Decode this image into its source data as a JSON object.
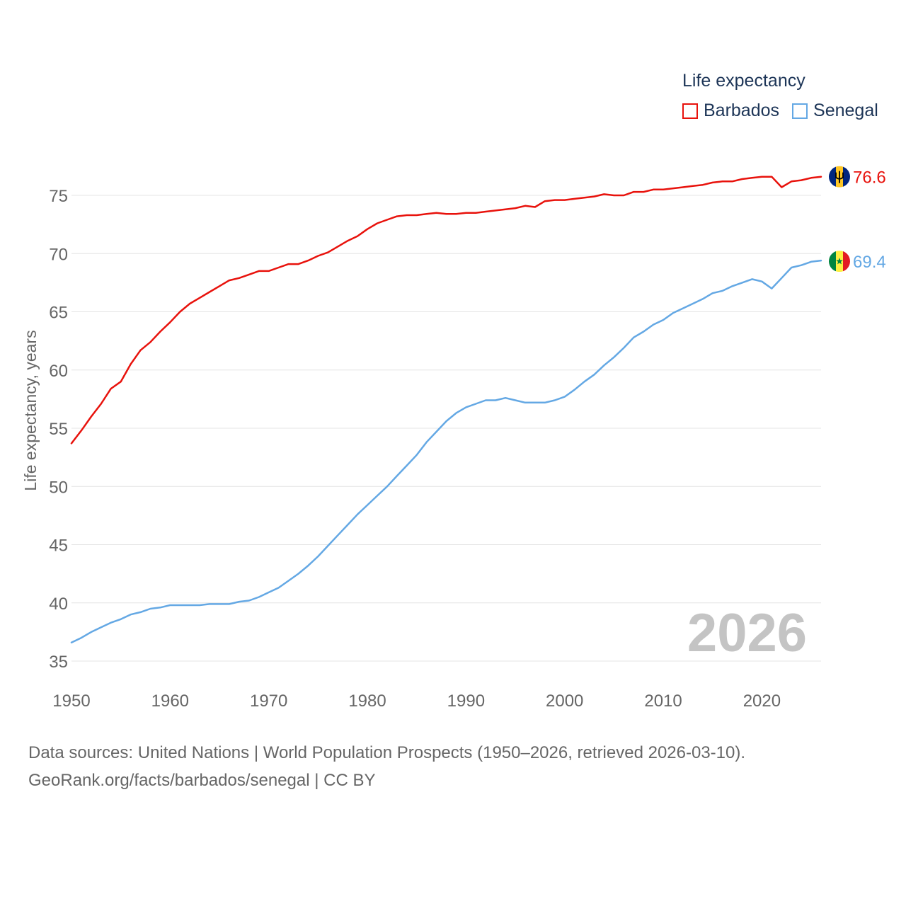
{
  "chart_data": {
    "type": "line",
    "title": "Life expectancy",
    "xlabel": "",
    "ylabel": "Life expectancy, years",
    "xlim": [
      1950,
      2026
    ],
    "ylim": [
      35,
      78
    ],
    "yticks": [
      35,
      40,
      45,
      50,
      55,
      60,
      65,
      70,
      75
    ],
    "xticks": [
      1950,
      1960,
      1970,
      1980,
      1990,
      2000,
      2010,
      2020
    ],
    "current_year_label": "2026",
    "series": [
      {
        "name": "Barbados",
        "color": "#e8120c",
        "end_label": "76.6",
        "flag_icon": "barbados-flag-icon",
        "x": [
          1950,
          1951,
          1952,
          1953,
          1954,
          1955,
          1956,
          1957,
          1958,
          1959,
          1960,
          1961,
          1962,
          1963,
          1964,
          1965,
          1966,
          1967,
          1968,
          1969,
          1970,
          1971,
          1972,
          1973,
          1974,
          1975,
          1976,
          1977,
          1978,
          1979,
          1980,
          1981,
          1982,
          1983,
          1984,
          1985,
          1986,
          1987,
          1988,
          1989,
          1990,
          1991,
          1992,
          1993,
          1994,
          1995,
          1996,
          1997,
          1998,
          1999,
          2000,
          2001,
          2002,
          2003,
          2004,
          2005,
          2006,
          2007,
          2008,
          2009,
          2010,
          2011,
          2012,
          2013,
          2014,
          2015,
          2016,
          2017,
          2018,
          2019,
          2020,
          2021,
          2022,
          2023,
          2024,
          2025,
          2026
        ],
        "values": [
          53.7,
          54.8,
          56.0,
          57.1,
          58.4,
          59.0,
          60.5,
          61.7,
          62.4,
          63.3,
          64.1,
          65.0,
          65.7,
          66.2,
          66.7,
          67.2,
          67.7,
          67.9,
          68.2,
          68.5,
          68.5,
          68.8,
          69.1,
          69.1,
          69.4,
          69.8,
          70.1,
          70.6,
          71.1,
          71.5,
          72.1,
          72.6,
          72.9,
          73.2,
          73.3,
          73.3,
          73.4,
          73.5,
          73.4,
          73.4,
          73.5,
          73.5,
          73.6,
          73.7,
          73.8,
          73.9,
          74.1,
          74.0,
          74.5,
          74.6,
          74.6,
          74.7,
          74.8,
          74.9,
          75.1,
          75.0,
          75.0,
          75.3,
          75.3,
          75.5,
          75.5,
          75.6,
          75.7,
          75.8,
          75.9,
          76.1,
          76.2,
          76.2,
          76.4,
          76.5,
          76.6,
          76.6,
          75.7,
          76.2,
          76.3,
          76.5,
          76.6
        ]
      },
      {
        "name": "Senegal",
        "color": "#64a8e4",
        "end_label": "69.4",
        "flag_icon": "senegal-flag-icon",
        "x": [
          1950,
          1951,
          1952,
          1953,
          1954,
          1955,
          1956,
          1957,
          1958,
          1959,
          1960,
          1961,
          1962,
          1963,
          1964,
          1965,
          1966,
          1967,
          1968,
          1969,
          1970,
          1971,
          1972,
          1973,
          1974,
          1975,
          1976,
          1977,
          1978,
          1979,
          1980,
          1981,
          1982,
          1983,
          1984,
          1985,
          1986,
          1987,
          1988,
          1989,
          1990,
          1991,
          1992,
          1993,
          1994,
          1995,
          1996,
          1997,
          1998,
          1999,
          2000,
          2001,
          2002,
          2003,
          2004,
          2005,
          2006,
          2007,
          2008,
          2009,
          2010,
          2011,
          2012,
          2013,
          2014,
          2015,
          2016,
          2017,
          2018,
          2019,
          2020,
          2021,
          2022,
          2023,
          2024,
          2025,
          2026
        ],
        "values": [
          36.6,
          37.0,
          37.5,
          37.9,
          38.3,
          38.6,
          39.0,
          39.2,
          39.5,
          39.6,
          39.8,
          39.8,
          39.8,
          39.8,
          39.9,
          39.9,
          39.9,
          40.1,
          40.2,
          40.5,
          40.9,
          41.3,
          41.9,
          42.5,
          43.2,
          44.0,
          44.9,
          45.8,
          46.7,
          47.6,
          48.4,
          49.2,
          50.0,
          50.9,
          51.8,
          52.7,
          53.8,
          54.7,
          55.6,
          56.3,
          56.8,
          57.1,
          57.4,
          57.4,
          57.6,
          57.4,
          57.2,
          57.2,
          57.2,
          57.4,
          57.7,
          58.3,
          59.0,
          59.6,
          60.4,
          61.1,
          61.9,
          62.8,
          63.3,
          63.9,
          64.3,
          64.9,
          65.3,
          65.7,
          66.1,
          66.6,
          66.8,
          67.2,
          67.5,
          67.8,
          67.6,
          67.0,
          67.9,
          68.8,
          69.0,
          69.3,
          69.4
        ]
      }
    ]
  },
  "footer": {
    "line1": "Data sources: United Nations | World Population Prospects (1950–2026, retrieved 2026-03-10).",
    "line2": "GeoRank.org/facts/barbados/senegal | CC BY"
  }
}
